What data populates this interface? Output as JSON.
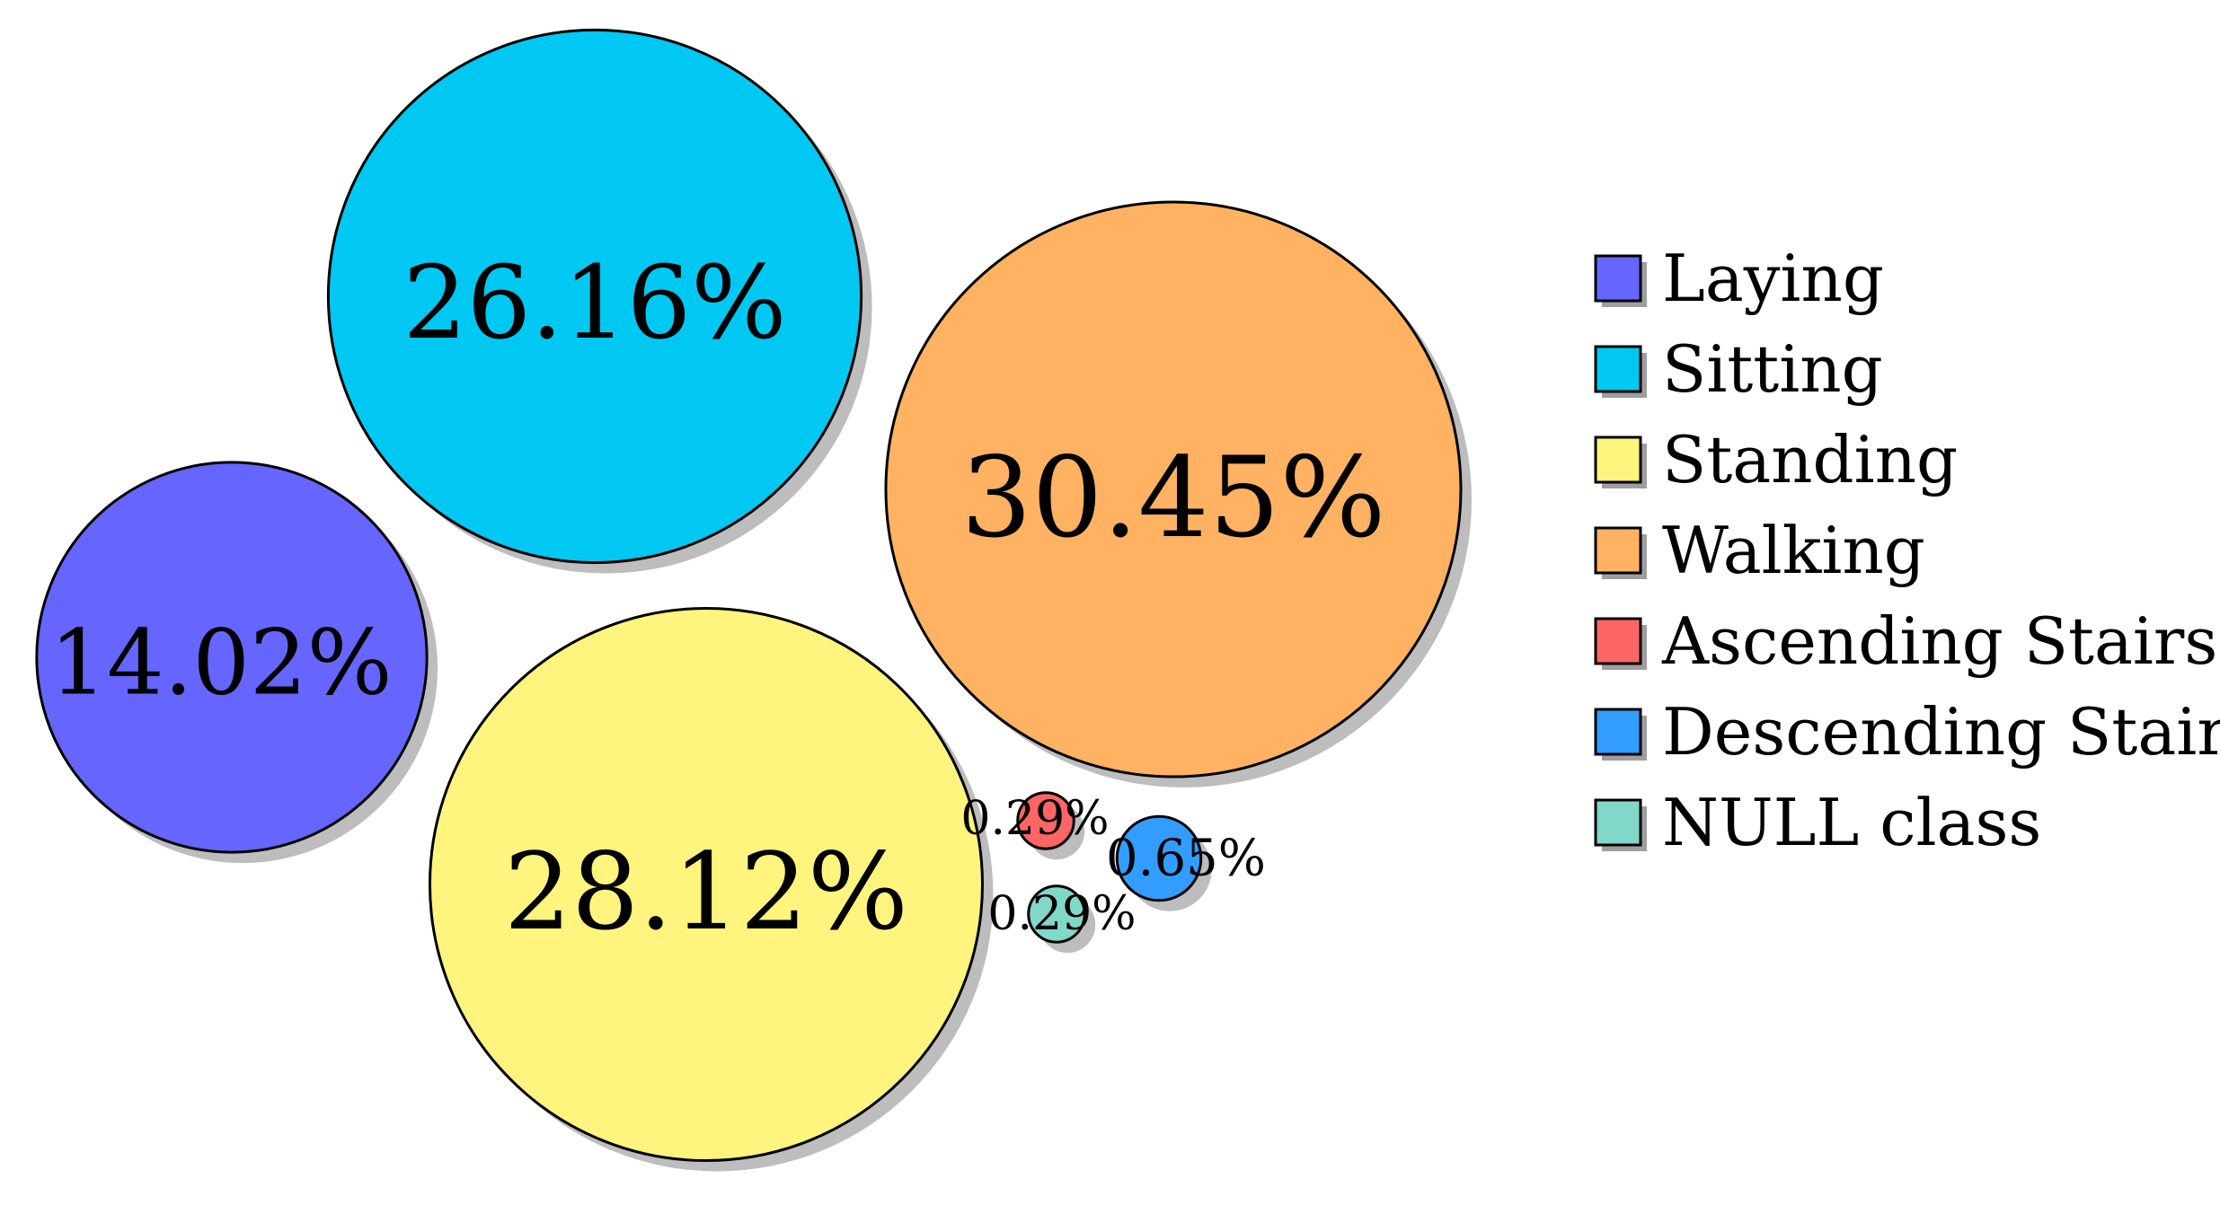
{
  "chart_data": {
    "type": "bubble",
    "title": "",
    "series": [
      {
        "name": "Laying",
        "value": 14.02,
        "value_label": "14.02%",
        "color": "#6666ff"
      },
      {
        "name": "Sitting",
        "value": 26.16,
        "value_label": "26.16%",
        "color": "#00c8f2"
      },
      {
        "name": "Standing",
        "value": 28.12,
        "value_label": "28.12%",
        "color": "#fff47d"
      },
      {
        "name": "Walking",
        "value": 30.45,
        "value_label": "30.45%",
        "color": "#ffb262"
      },
      {
        "name": "Ascending Stairs",
        "value": 0.29,
        "value_label": "0.29%",
        "color": "#ff6565"
      },
      {
        "name": "Descending Stairs",
        "value": 0.65,
        "value_label": "0.65%",
        "color": "#339dff"
      },
      {
        "name": "NULL class",
        "value": 0.29,
        "value_label": "0.29%",
        "color": "#82d8c8"
      }
    ],
    "legend_position": "right",
    "grid": false
  }
}
